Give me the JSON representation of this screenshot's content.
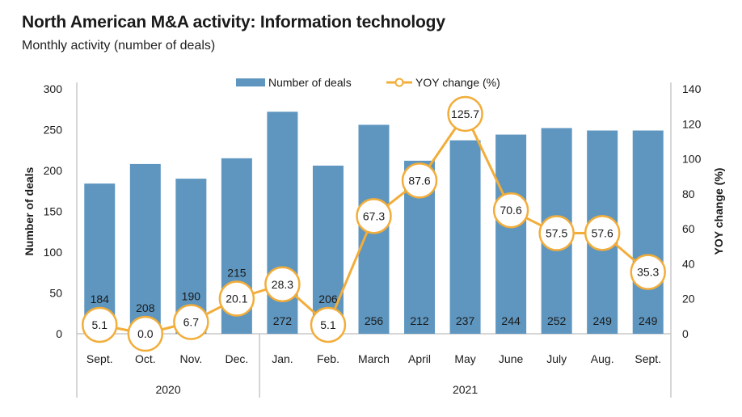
{
  "title": "North American M&A activity: Information technology",
  "subtitle": "Monthly activity (number of deals)",
  "colors": {
    "bar": "#5e96bf",
    "line": "#f2ad3a",
    "axis": "#c8c8c8"
  },
  "chart_data": {
    "type": "bar+line",
    "title": "North American M&A activity: Information technology",
    "subtitle": "Monthly activity (number of deals)",
    "categories": [
      "Sept.",
      "Oct.",
      "Nov.",
      "Dec.",
      "Jan.",
      "Feb.",
      "March",
      "April",
      "May",
      "June",
      "July",
      "Aug.",
      "Sept."
    ],
    "year_groups": [
      {
        "label": "2020",
        "count": 4
      },
      {
        "label": "2021",
        "count": 9
      }
    ],
    "series": [
      {
        "name": "Number of deals",
        "type": "bar",
        "axis": "left",
        "values": [
          184,
          208,
          190,
          215,
          272,
          206,
          256,
          212,
          237,
          244,
          252,
          249,
          249
        ]
      },
      {
        "name": "YOY change (%)",
        "type": "line",
        "axis": "right",
        "values": [
          5.1,
          0.0,
          6.7,
          20.1,
          28.3,
          5.1,
          67.3,
          87.6,
          125.7,
          70.6,
          57.5,
          57.6,
          35.3
        ]
      }
    ],
    "left_axis": {
      "label": "Number of deals",
      "range": [
        0,
        300
      ],
      "ticks": [
        0,
        50,
        100,
        150,
        200,
        250,
        300
      ]
    },
    "right_axis": {
      "label": "YOY change (%)",
      "range": [
        0,
        140
      ],
      "ticks": [
        0,
        20,
        40,
        60,
        80,
        100,
        120,
        140
      ]
    },
    "legend": {
      "position": "top-center",
      "entries": [
        "Number of deals",
        "YOY change (%)"
      ]
    },
    "grid": false
  }
}
